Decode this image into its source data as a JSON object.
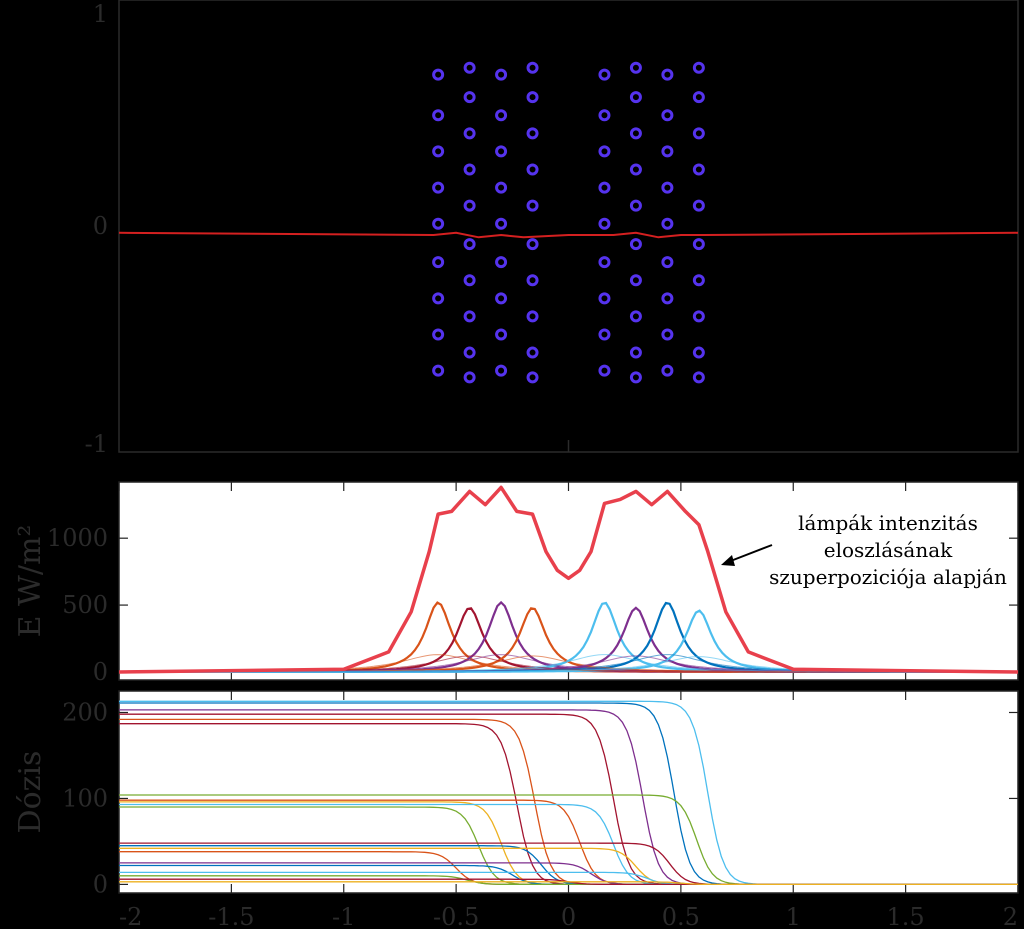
{
  "chart_data": [
    {
      "id": "lamps-layout",
      "type": "scatter",
      "title": "",
      "xlabel": "",
      "ylabel": "",
      "xlim": [
        -2,
        2
      ],
      "ylim": [
        -1,
        1
      ],
      "yticks": [
        "1",
        "0",
        "-1"
      ],
      "marker_color": "#5533ee",
      "line_color": "#d42020",
      "columns_x": [
        -0.58,
        -0.44,
        -0.3,
        -0.16,
        0.16,
        0.3,
        0.44,
        0.58
      ],
      "rows_y_offset0": [
        0.67,
        0.49,
        0.33,
        0.17,
        0.01,
        -0.16,
        -0.32,
        -0.48,
        -0.64
      ],
      "rows_y_offset1": [
        0.7,
        0.57,
        0.41,
        0.25,
        0.09,
        -0.08,
        -0.24,
        -0.4,
        -0.56,
        -0.67
      ],
      "dose_line": {
        "x": [
          -2,
          -0.6,
          -0.5,
          -0.4,
          -0.3,
          -0.2,
          0,
          0.2,
          0.3,
          0.4,
          0.5,
          0.6,
          2
        ],
        "y": [
          -0.03,
          -0.04,
          -0.03,
          -0.05,
          -0.04,
          -0.05,
          -0.04,
          -0.04,
          -0.03,
          -0.05,
          -0.04,
          -0.04,
          -0.03
        ]
      }
    },
    {
      "id": "intensity",
      "type": "line",
      "title": "",
      "xlabel": "",
      "ylabel": "E W/m²",
      "xlim": [
        -2,
        2
      ],
      "ylim": [
        -60,
        1420
      ],
      "yticks": [
        "1000",
        "500",
        "0"
      ],
      "annotation": [
        "lámpák intenzitás",
        "eloszlásának",
        "szuperpoziciója alapján"
      ],
      "lamp_peaks": [
        {
          "x": -0.58,
          "peak": 520,
          "color": "#d95319"
        },
        {
          "x": -0.44,
          "peak": 480,
          "color": "#a2142f"
        },
        {
          "x": -0.3,
          "peak": 520,
          "color": "#7e2f8e"
        },
        {
          "x": -0.16,
          "peak": 480,
          "color": "#d95319"
        },
        {
          "x": 0.16,
          "peak": 520,
          "color": "#4dbeee"
        },
        {
          "x": 0.3,
          "peak": 480,
          "color": "#7e2f8e"
        },
        {
          "x": 0.44,
          "peak": 520,
          "color": "#0072bd"
        },
        {
          "x": 0.58,
          "peak": 460,
          "color": "#4dbeee"
        }
      ],
      "total_x": [
        -2.0,
        -1.0,
        -0.8,
        -0.7,
        -0.62,
        -0.58,
        -0.52,
        -0.44,
        -0.37,
        -0.3,
        -0.23,
        -0.16,
        -0.1,
        -0.05,
        0,
        0.05,
        0.1,
        0.16,
        0.23,
        0.3,
        0.37,
        0.44,
        0.52,
        0.58,
        0.62,
        0.7,
        0.8,
        1.0,
        2.0
      ],
      "total_y": [
        0,
        20,
        150,
        450,
        900,
        1180,
        1200,
        1350,
        1250,
        1380,
        1200,
        1180,
        900,
        760,
        700,
        760,
        900,
        1260,
        1290,
        1350,
        1250,
        1350,
        1200,
        1100,
        900,
        450,
        150,
        20,
        0
      ],
      "total_color": "#e8404c"
    },
    {
      "id": "dose",
      "type": "line",
      "title": "",
      "xlabel": "",
      "ylabel": "Dózis",
      "xlim": [
        -2,
        2
      ],
      "ylim": [
        -10,
        225
      ],
      "yticks": [
        "200",
        "100",
        "0"
      ],
      "xticks": [
        "-2",
        "-1.5",
        "-1",
        "-0.5",
        "0",
        "0.5",
        "1",
        "1.5",
        "2"
      ],
      "xtick_values": [
        -2,
        -1.5,
        -1,
        -0.5,
        0,
        0.5,
        1,
        1.5,
        2
      ],
      "curves": [
        {
          "level": 213,
          "drop": 0.62,
          "color": "#4dbeee"
        },
        {
          "level": 211,
          "drop": 0.47,
          "color": "#0072bd"
        },
        {
          "level": 203,
          "drop": 0.33,
          "color": "#7e2f8e"
        },
        {
          "level": 198,
          "drop": 0.2,
          "color": "#a2142f"
        },
        {
          "level": 192,
          "drop": -0.15,
          "color": "#d95319"
        },
        {
          "level": 187,
          "drop": -0.23,
          "color": "#a2142f"
        },
        {
          "level": 104,
          "drop": 0.57,
          "color": "#77ac30"
        },
        {
          "level": 98,
          "drop": 0.05,
          "color": "#d95319"
        },
        {
          "level": 96,
          "drop": -0.3,
          "color": "#edb120"
        },
        {
          "level": 93,
          "drop": 0.2,
          "color": "#4dbeee"
        },
        {
          "level": 90,
          "drop": -0.4,
          "color": "#77ac30"
        },
        {
          "level": 48,
          "drop": 0.45,
          "color": "#a2142f"
        },
        {
          "level": 45,
          "drop": -0.12,
          "color": "#0072bd"
        },
        {
          "level": 42,
          "drop": 0.3,
          "color": "#edb120"
        },
        {
          "level": 38,
          "drop": -0.5,
          "color": "#d95319"
        },
        {
          "level": 25,
          "drop": 0.1,
          "color": "#7e2f8e"
        },
        {
          "level": 22,
          "drop": -0.25,
          "color": "#0072bd"
        },
        {
          "level": 14,
          "drop": 0.35,
          "color": "#4dbeee"
        },
        {
          "level": 10,
          "drop": -0.45,
          "color": "#77ac30"
        },
        {
          "level": 6,
          "drop": 0.0,
          "color": "#a2142f"
        },
        {
          "level": 3,
          "drop": 0.5,
          "color": "#edb120"
        }
      ]
    }
  ]
}
